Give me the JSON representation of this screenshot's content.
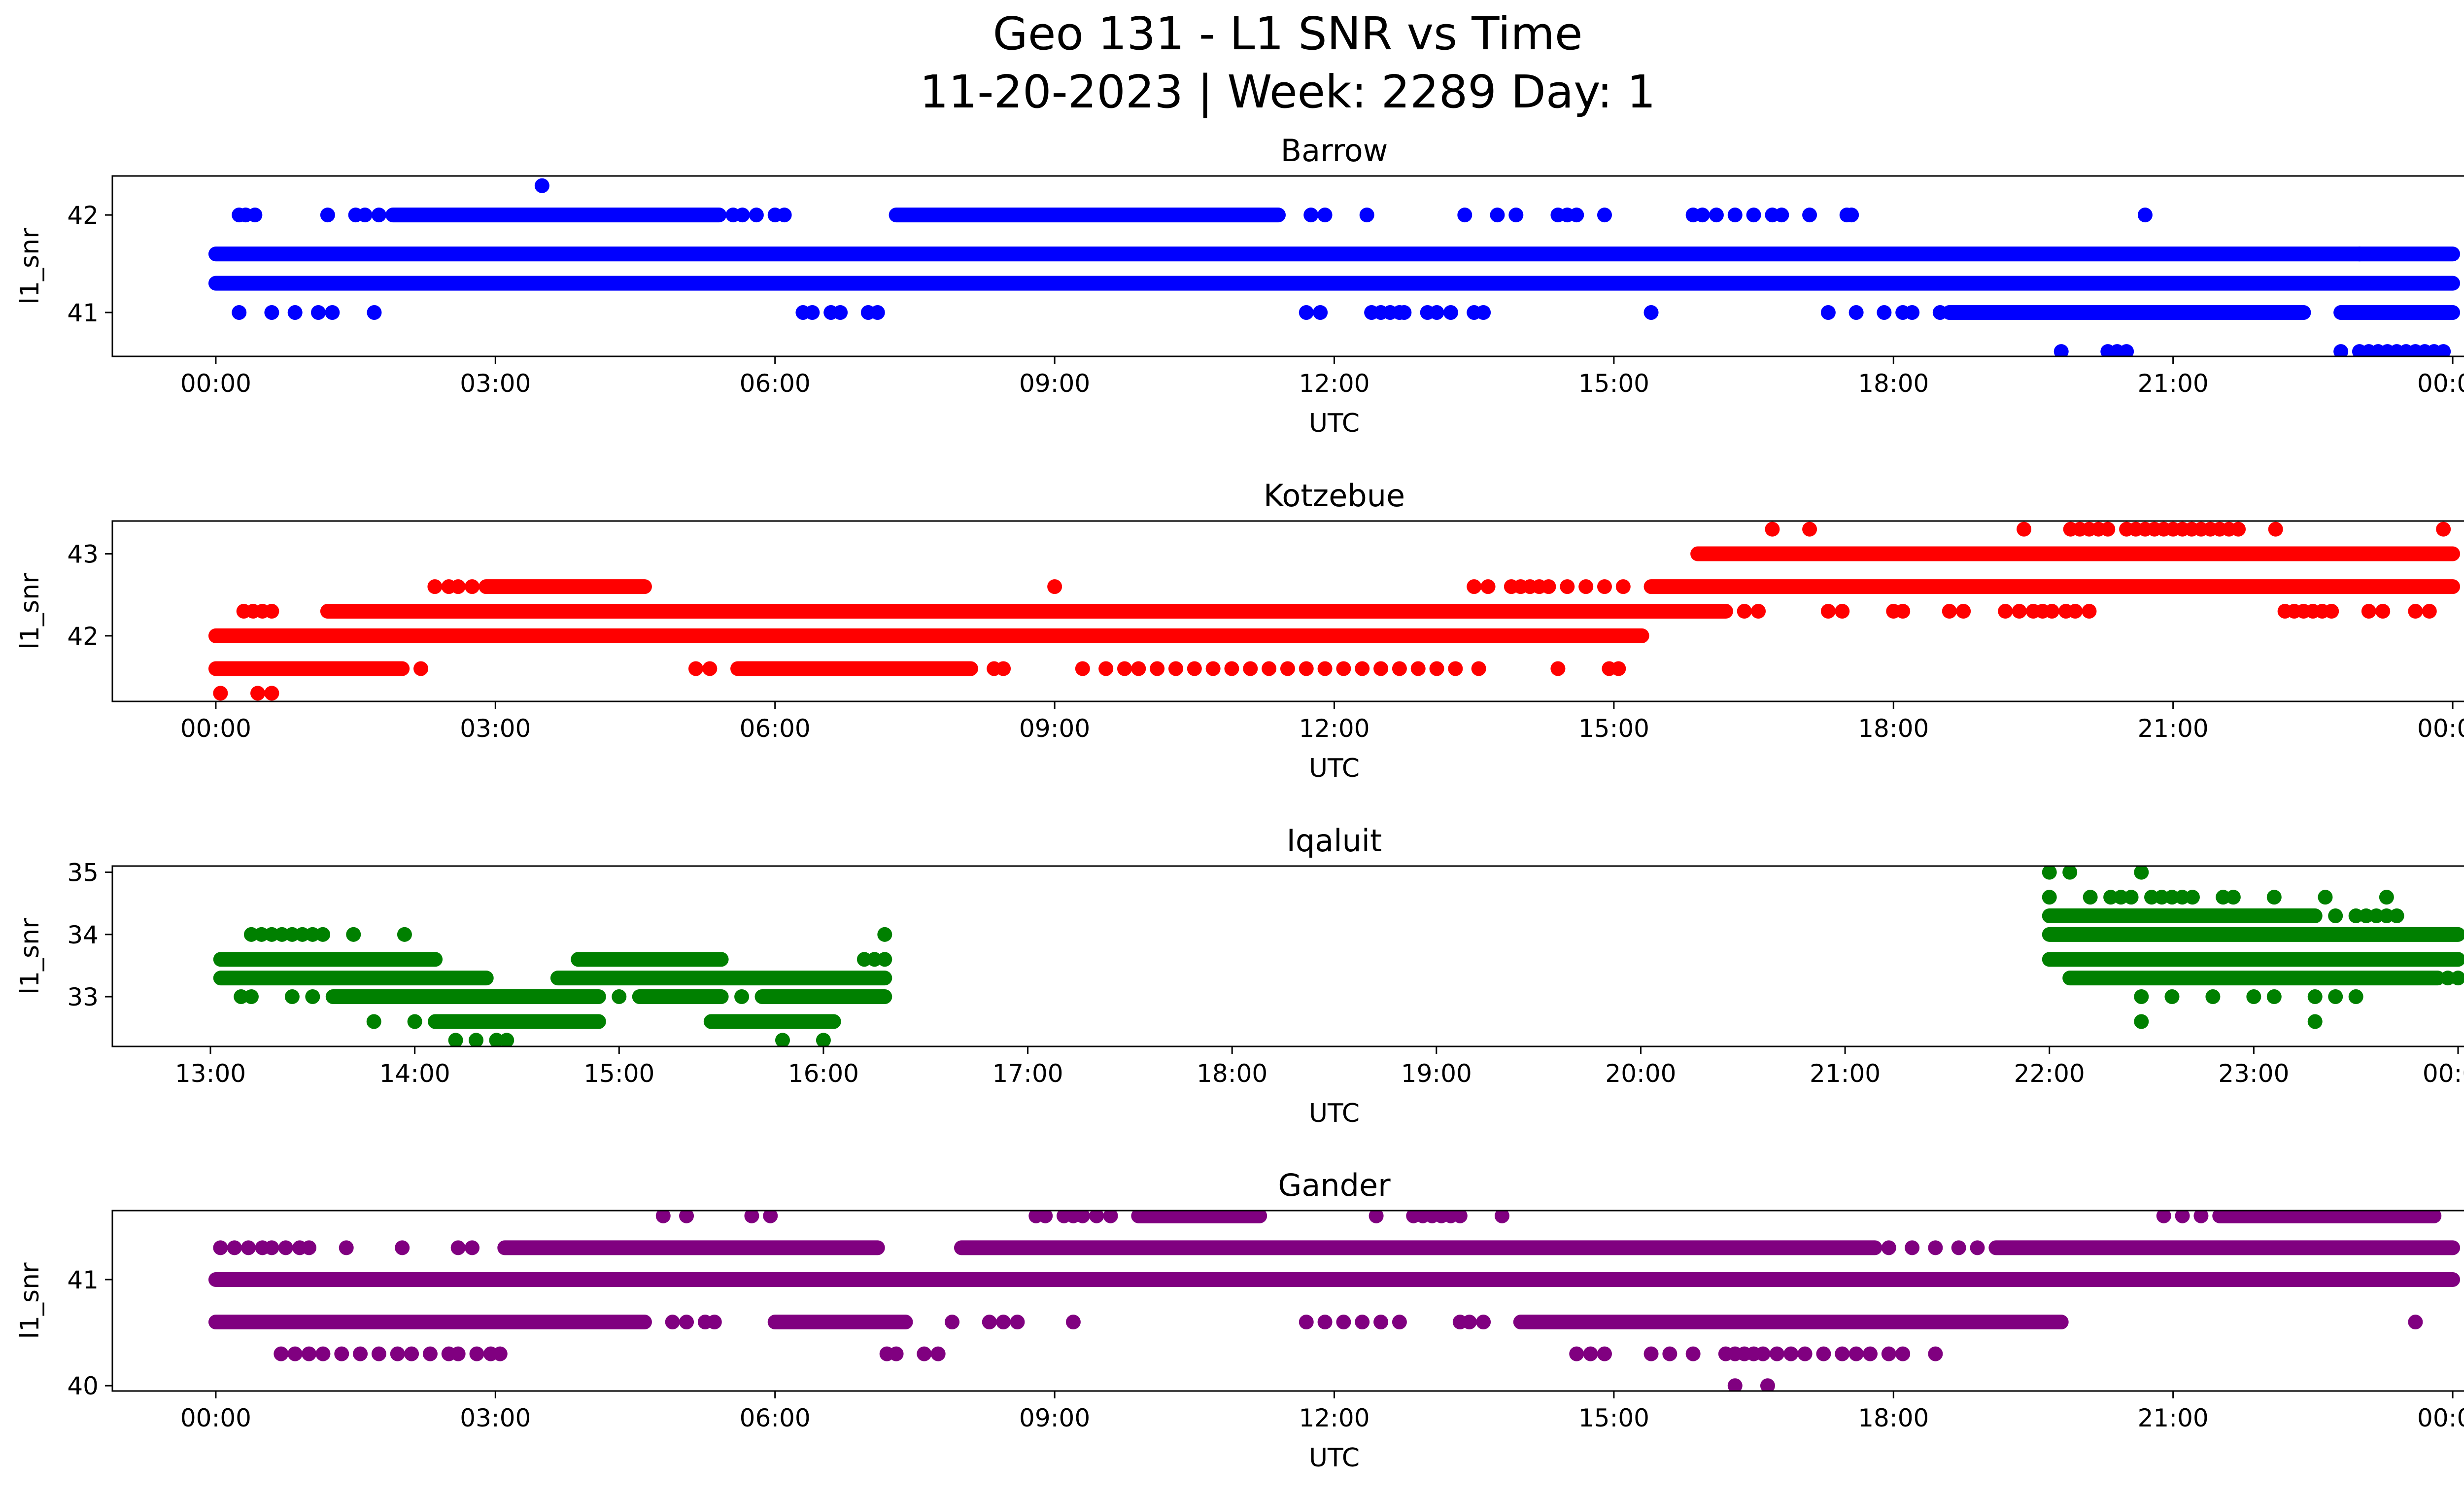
{
  "figure": {
    "title_line1": "Geo 131 - L1 SNR vs Time",
    "title_line2": "11-20-2023 | Week: 2289 Day: 1"
  },
  "chart_data": [
    {
      "type": "scatter",
      "title": "Barrow",
      "xlabel": "UTC",
      "ylabel": "l1_snr",
      "color": "#0000ff",
      "xlim": [
        -1.11,
        25.11
      ],
      "ylim": [
        40.55,
        42.4
      ],
      "x_ticks": [
        0,
        3,
        6,
        9,
        12,
        15,
        18,
        21,
        24
      ],
      "x_tick_labels": [
        "00:00",
        "03:00",
        "06:00",
        "09:00",
        "12:00",
        "15:00",
        "18:00",
        "21:00",
        "00:00"
      ],
      "y_ticks": [
        41,
        42
      ],
      "y_tick_labels": [
        "41",
        "42"
      ],
      "grid": false,
      "bands": [
        {
          "y": 41.6,
          "ranges": [
            [
              0,
              24
            ]
          ]
        },
        {
          "y": 41.3,
          "ranges": [
            [
              0,
              24
            ]
          ]
        },
        {
          "y": 42.0,
          "ranges": [
            [
              1.9,
              5.4
            ],
            [
              7.3,
              11.4
            ]
          ]
        },
        {
          "y": 41.0,
          "ranges": [
            [
              18.6,
              22.4
            ],
            [
              22.8,
              24
            ]
          ]
        }
      ],
      "scatter": [
        {
          "y": 42.0,
          "x": [
            0.25,
            0.32,
            0.42,
            1.2,
            1.5,
            1.6,
            1.75,
            5.55,
            5.65,
            5.8,
            6.0,
            6.1,
            11.75,
            11.9,
            12.35,
            13.4,
            13.75,
            13.95,
            14.4,
            14.5,
            14.6,
            14.9,
            15.85,
            15.95,
            16.1,
            16.3,
            16.5,
            16.7,
            16.8,
            17.1,
            17.5,
            17.55,
            20.7
          ]
        },
        {
          "y": 42.3,
          "x": [
            3.5
          ]
        },
        {
          "y": 41.6,
          "x": [
            23.0
          ]
        },
        {
          "y": 41.0,
          "x": [
            0.25,
            0.6,
            0.85,
            1.1,
            1.25,
            1.7,
            6.3,
            6.4,
            6.6,
            6.7,
            7.0,
            7.1,
            11.7,
            11.85,
            12.4,
            12.5,
            12.6,
            12.7,
            12.75,
            13.0,
            13.1,
            13.25,
            13.5,
            13.6,
            15.4,
            17.3,
            17.6,
            17.9,
            18.1,
            18.2,
            18.5
          ]
        },
        {
          "y": 40.6,
          "x": [
            19.8,
            20.3,
            20.4,
            20.5,
            22.8,
            23.0,
            23.1,
            23.2,
            23.3,
            23.4,
            23.5,
            23.6,
            23.7,
            23.8,
            23.9
          ]
        }
      ]
    },
    {
      "type": "scatter",
      "title": "Kotzebue",
      "xlabel": "UTC",
      "ylabel": "l1_snr",
      "color": "#ff0000",
      "xlim": [
        -1.11,
        25.11
      ],
      "ylim": [
        41.2,
        43.4
      ],
      "x_ticks": [
        0,
        3,
        6,
        9,
        12,
        15,
        18,
        21,
        24
      ],
      "x_tick_labels": [
        "00:00",
        "03:00",
        "06:00",
        "09:00",
        "12:00",
        "15:00",
        "18:00",
        "21:00",
        "00:00"
      ],
      "y_ticks": [
        42,
        43
      ],
      "y_tick_labels": [
        "42",
        "43"
      ],
      "grid": false,
      "bands": [
        {
          "y": 42.0,
          "ranges": [
            [
              0,
              15.3
            ]
          ]
        },
        {
          "y": 42.3,
          "ranges": [
            [
              1.2,
              16.2
            ]
          ]
        },
        {
          "y": 41.6,
          "ranges": [
            [
              0,
              2.0
            ],
            [
              5.6,
              8.1
            ]
          ]
        },
        {
          "y": 42.6,
          "ranges": [
            [
              2.9,
              4.6
            ],
            [
              15.4,
              24
            ]
          ]
        },
        {
          "y": 43.0,
          "ranges": [
            [
              15.9,
              24
            ]
          ]
        }
      ],
      "scatter": [
        {
          "y": 41.3,
          "x": [
            0.05,
            0.45,
            0.6
          ]
        },
        {
          "y": 41.6,
          "x": [
            2.2,
            5.15,
            5.3,
            5.95,
            6.05,
            8.35,
            8.45,
            9.3,
            9.55,
            9.75,
            9.9,
            10.1,
            10.3,
            10.5,
            10.7,
            10.9,
            11.1,
            11.3,
            11.5,
            11.7,
            11.9,
            12.1,
            12.3,
            12.5,
            12.7,
            12.9,
            13.1,
            13.3,
            13.55,
            14.4,
            14.95,
            15.05
          ]
        },
        {
          "y": 42.3,
          "x": [
            0.3,
            0.4,
            0.5,
            0.6,
            16.4,
            16.55,
            17.3,
            17.45,
            18.0,
            18.1,
            18.6,
            18.75,
            19.2,
            19.35,
            19.5,
            19.6,
            19.7,
            19.85,
            19.95,
            20.1,
            22.2,
            22.3,
            22.4,
            22.5,
            22.6,
            22.7,
            23.1,
            23.25,
            23.6,
            23.75
          ]
        },
        {
          "y": 42.6,
          "x": [
            2.35,
            2.5,
            2.6,
            2.75,
            9.0,
            13.5,
            13.65,
            13.9,
            14.0,
            14.1,
            14.2,
            14.3,
            14.5,
            14.7,
            14.9,
            15.1
          ]
        },
        {
          "y": 43.3,
          "x": [
            16.7,
            17.1,
            19.4,
            19.9,
            20.0,
            20.1,
            20.2,
            20.3,
            20.5,
            20.6,
            20.7,
            20.8,
            20.9,
            21.0,
            21.1,
            21.2,
            21.3,
            21.4,
            21.5,
            21.6,
            21.7,
            22.1,
            23.9
          ]
        }
      ]
    },
    {
      "type": "scatter",
      "title": "Iqaluit",
      "xlabel": "UTC",
      "ylabel": "l1_snr",
      "color": "#008000",
      "xlim": [
        12.52,
        24.48
      ],
      "ylim": [
        32.2,
        35.1
      ],
      "x_ticks": [
        13,
        14,
        15,
        16,
        17,
        18,
        19,
        20,
        21,
        22,
        23,
        24
      ],
      "x_tick_labels": [
        "13:00",
        "14:00",
        "15:00",
        "16:00",
        "17:00",
        "18:00",
        "19:00",
        "20:00",
        "21:00",
        "22:00",
        "23:00",
        "00:00"
      ],
      "y_ticks": [
        33,
        34,
        35
      ],
      "y_tick_labels": [
        "33",
        "34",
        "35"
      ],
      "grid": false,
      "bands": [
        {
          "y": 33.6,
          "ranges": [
            [
              13.05,
              14.1
            ],
            [
              22.0,
              24.0
            ]
          ]
        },
        {
          "y": 33.3,
          "ranges": [
            [
              13.05,
              14.35
            ],
            [
              14.7,
              16.3
            ],
            [
              22.1,
              23.9
            ]
          ]
        },
        {
          "y": 33.0,
          "ranges": [
            [
              13.6,
              14.9
            ],
            [
              15.1,
              15.5
            ],
            [
              15.7,
              16.3
            ]
          ]
        },
        {
          "y": 32.6,
          "ranges": [
            [
              14.1,
              14.9
            ],
            [
              15.45,
              16.05
            ]
          ]
        },
        {
          "y": 34.0,
          "ranges": [
            [
              22.0,
              24.0
            ]
          ]
        },
        {
          "y": 34.3,
          "ranges": [
            [
              22.0,
              23.3
            ]
          ]
        },
        {
          "y": 33.6,
          "ranges": [
            [
              14.8,
              15.5
            ]
          ]
        }
      ],
      "scatter": [
        {
          "y": 34.0,
          "x": [
            13.2,
            13.25,
            13.3,
            13.35,
            13.4,
            13.45,
            13.5,
            13.55,
            13.7,
            13.95,
            16.3
          ]
        },
        {
          "y": 33.0,
          "x": [
            13.15,
            13.2,
            13.4,
            13.5,
            15.0,
            15.6
          ]
        },
        {
          "y": 32.6,
          "x": [
            13.8,
            14.0
          ]
        },
        {
          "y": 32.3,
          "x": [
            14.2,
            14.3,
            14.4,
            14.45,
            15.8,
            16.0
          ]
        },
        {
          "y": 33.6,
          "x": [
            14.8,
            16.2,
            16.25,
            16.3
          ]
        },
        {
          "y": 35.0,
          "x": [
            22.0,
            22.1,
            22.45
          ]
        },
        {
          "y": 34.6,
          "x": [
            22.0,
            22.2,
            22.3,
            22.35,
            22.4,
            22.5,
            22.55,
            22.6,
            22.65,
            22.7,
            22.85,
            22.9,
            23.1,
            23.35,
            23.65
          ]
        },
        {
          "y": 34.3,
          "x": [
            23.4,
            23.5,
            23.55,
            23.6,
            23.65,
            23.7
          ]
        },
        {
          "y": 33.0,
          "x": [
            22.45,
            22.6,
            22.8,
            23.0,
            23.1,
            23.3,
            23.4,
            23.5
          ]
        },
        {
          "y": 32.6,
          "x": [
            22.45,
            23.3
          ]
        },
        {
          "y": 33.3,
          "x": [
            23.95,
            24.0
          ]
        }
      ]
    },
    {
      "type": "scatter",
      "title": "Gander",
      "xlabel": "UTC",
      "ylabel": "l1_snr",
      "color": "#800080",
      "xlim": [
        -1.11,
        25.11
      ],
      "ylim": [
        39.95,
        41.65
      ],
      "x_ticks": [
        0,
        3,
        6,
        9,
        12,
        15,
        18,
        21,
        24
      ],
      "x_tick_labels": [
        "00:00",
        "03:00",
        "06:00",
        "09:00",
        "12:00",
        "15:00",
        "18:00",
        "21:00",
        "00:00"
      ],
      "y_ticks": [
        40,
        41
      ],
      "y_tick_labels": [
        "40",
        "41"
      ],
      "grid": false,
      "bands": [
        {
          "y": 41.0,
          "ranges": [
            [
              0,
              24
            ]
          ]
        },
        {
          "y": 41.3,
          "ranges": [
            [
              3.1,
              7.1
            ],
            [
              8.0,
              17.8
            ],
            [
              19.1,
              24
            ]
          ]
        },
        {
          "y": 40.6,
          "ranges": [
            [
              0,
              4.6
            ],
            [
              6.0,
              7.4
            ],
            [
              14.0,
              19.8
            ]
          ]
        },
        {
          "y": 41.6,
          "ranges": [
            [
              9.9,
              11.2
            ],
            [
              21.5,
              23.8
            ]
          ]
        }
      ],
      "scatter": [
        {
          "y": 41.3,
          "x": [
            0.05,
            0.2,
            0.35,
            0.5,
            0.6,
            0.75,
            0.9,
            1.0,
            1.4,
            2.0,
            2.6,
            2.75,
            17.95,
            18.2,
            18.45,
            18.7,
            18.9
          ]
        },
        {
          "y": 41.6,
          "x": [
            4.8,
            5.05,
            5.75,
            5.95,
            8.8,
            8.9,
            9.1,
            9.2,
            9.3,
            9.45,
            9.6,
            12.45,
            12.85,
            12.95,
            13.05,
            13.15,
            13.25,
            13.35,
            13.8,
            20.9,
            21.1,
            21.3
          ]
        },
        {
          "y": 40.6,
          "x": [
            4.9,
            5.05,
            5.25,
            5.35,
            7.9,
            8.3,
            8.45,
            8.6,
            9.2,
            11.7,
            11.9,
            12.1,
            12.3,
            12.5,
            12.7,
            13.35,
            13.45,
            13.6,
            23.6
          ]
        },
        {
          "y": 40.3,
          "x": [
            0.7,
            0.85,
            1.0,
            1.15,
            1.35,
            1.55,
            1.75,
            1.95,
            2.1,
            2.3,
            2.5,
            2.6,
            2.8,
            2.95,
            3.05,
            7.2,
            7.3,
            7.6,
            7.75,
            14.6,
            14.75,
            14.9,
            15.4,
            15.6,
            15.85,
            16.2,
            16.3,
            16.4,
            16.5,
            16.6,
            16.75,
            16.9,
            17.05,
            17.25,
            17.45,
            17.6,
            17.75,
            17.95,
            18.1,
            18.45
          ]
        },
        {
          "y": 40.0,
          "x": [
            16.3,
            16.65
          ]
        },
        {
          "y": 41.0,
          "x": [
            22.0
          ]
        }
      ]
    }
  ]
}
